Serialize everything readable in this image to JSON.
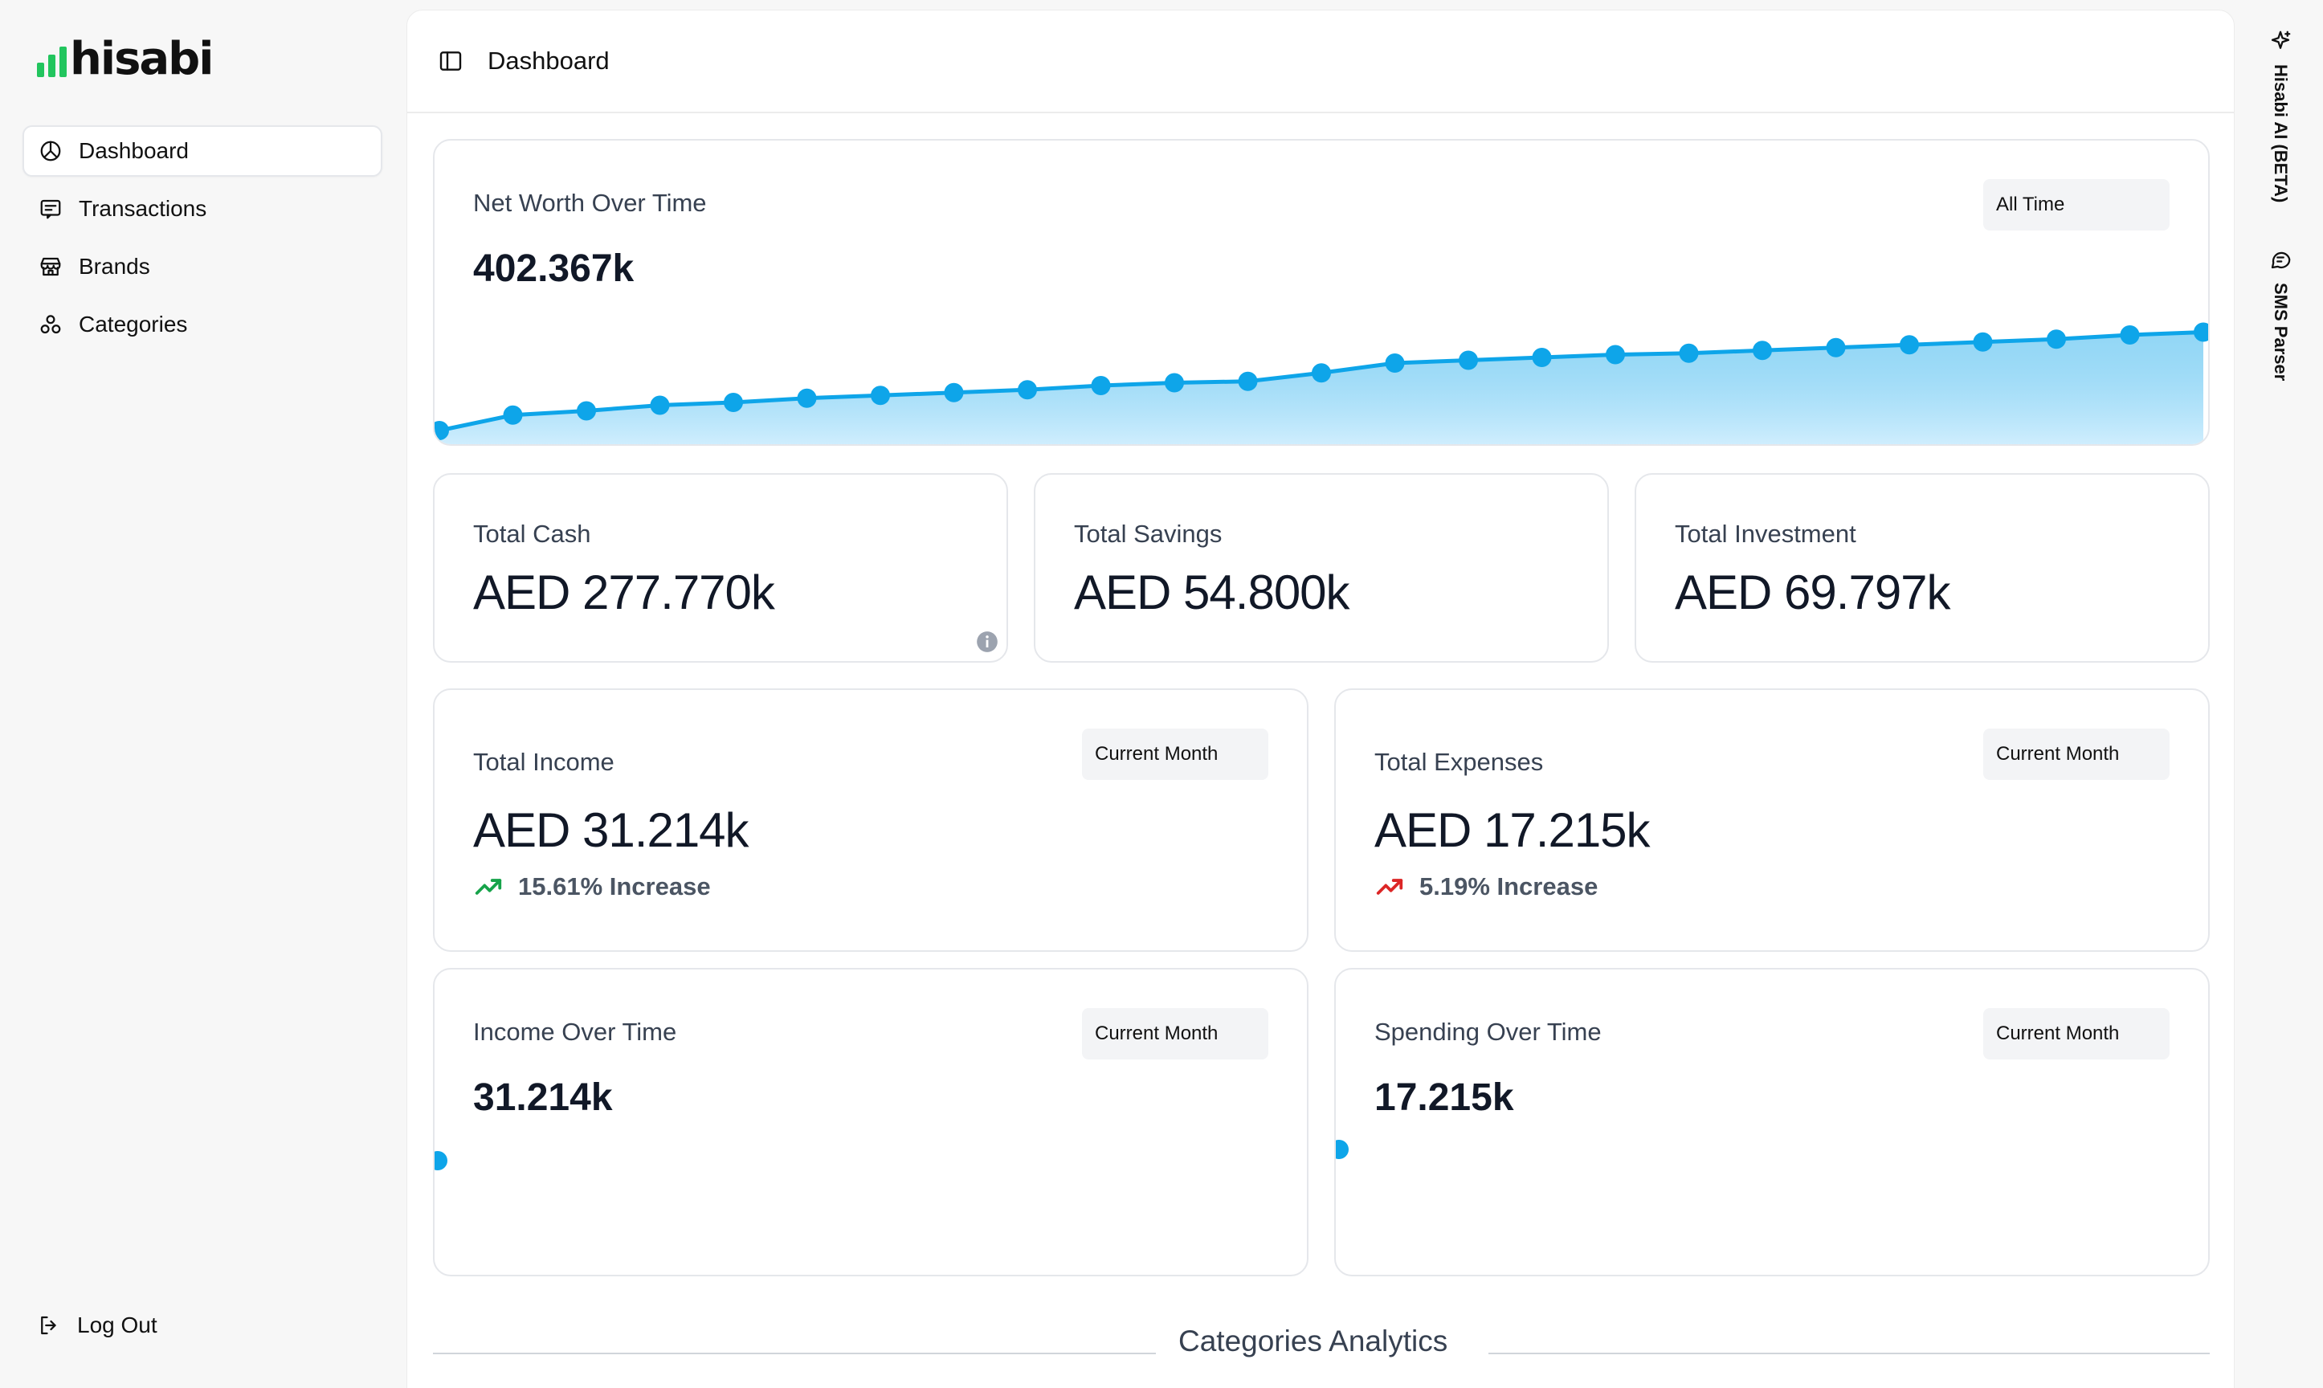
{
  "app": {
    "logo_text": "hisabi"
  },
  "sidebar": {
    "items": [
      {
        "label": "Dashboard",
        "icon": "dashboard-icon",
        "active": true
      },
      {
        "label": "Transactions",
        "icon": "transactions-icon"
      },
      {
        "label": "Brands",
        "icon": "store-icon"
      },
      {
        "label": "Categories",
        "icon": "categories-icon"
      }
    ],
    "logout": "Log Out"
  },
  "header": {
    "title": "Dashboard"
  },
  "net_worth": {
    "label": "Net Worth Over Time",
    "value": "402.367k",
    "range": "All Time"
  },
  "totals": {
    "cash": {
      "label": "Total Cash",
      "value": "AED 277.770k"
    },
    "savings": {
      "label": "Total Savings",
      "value": "AED 54.800k"
    },
    "investment": {
      "label": "Total Investment",
      "value": "AED 69.797k"
    }
  },
  "income": {
    "label": "Total Income",
    "value": "AED 31.214k",
    "range": "Current Month",
    "trend": "15.61% Increase",
    "trend_color": "#16a34a"
  },
  "expenses": {
    "label": "Total Expenses",
    "value": "AED 17.215k",
    "range": "Current Month",
    "trend": "5.19% Increase",
    "trend_color": "#dc2626"
  },
  "income_over_time": {
    "label": "Income Over Time",
    "value": "31.214k",
    "range": "Current Month"
  },
  "spending_over_time": {
    "label": "Spending Over Time",
    "value": "17.215k",
    "range": "Current Month"
  },
  "categories_analytics": {
    "title": "Categories Analytics"
  },
  "rail": {
    "ai": "Hisabi AI (BETA)",
    "sms": "SMS Parser"
  },
  "colors": {
    "accent": "#0ea5e9",
    "area_fill": "#bae6fd",
    "brand_green": "#22c55e"
  },
  "chart_data": [
    {
      "type": "area",
      "title": "Net Worth Over Time",
      "x": [
        0,
        1,
        2,
        3,
        4,
        5,
        6,
        7,
        8,
        9,
        10,
        11,
        12,
        13,
        14,
        15,
        16,
        17,
        18,
        19,
        20,
        21,
        22,
        23,
        24
      ],
      "values": [
        8,
        30,
        36,
        44,
        48,
        54,
        58,
        62,
        66,
        72,
        76,
        78,
        90,
        104,
        108,
        112,
        116,
        118,
        122,
        126,
        130,
        134,
        138,
        144,
        148
      ],
      "ylim": [
        0,
        160
      ],
      "xlabel": "",
      "ylabel": "",
      "grid": false
    },
    {
      "type": "line",
      "title": "Income Over Time",
      "x": [
        0
      ],
      "values": [
        31.214
      ]
    },
    {
      "type": "line",
      "title": "Spending Over Time",
      "x": [
        0
      ],
      "values": [
        17.215
      ]
    }
  ]
}
